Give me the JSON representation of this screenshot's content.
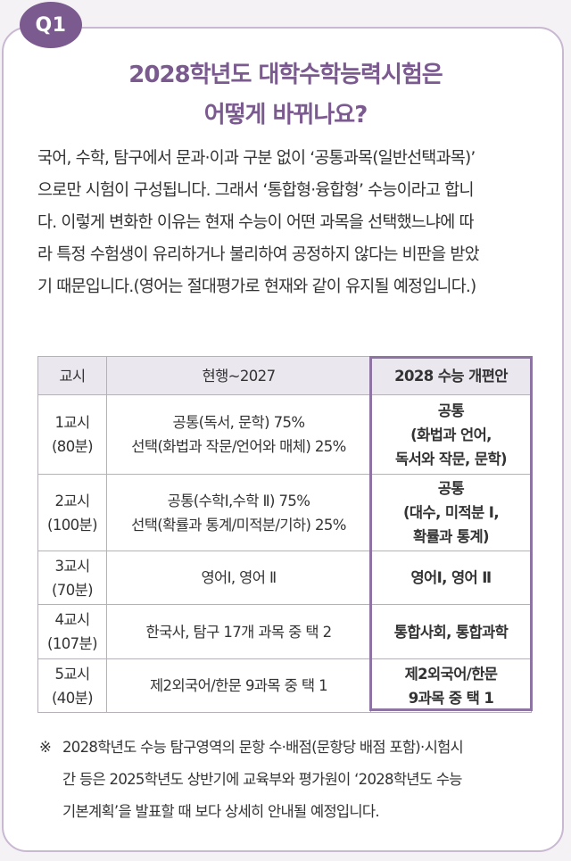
{
  "badge": "Q1",
  "title": {
    "line1": "2028학년도 대학수학능력시험은",
    "line2": "어떻게 바뀌나요?"
  },
  "intro": {
    "lines": [
      "국어, 수학, 탐구에서 문과·이과 구분 없이 ‘공통과목(일반선택과목)’",
      "으로만 시험이 구성됩니다. 그래서 ‘통합형·융합형’ 수능이라고 합니",
      "다. 이렇게 변화한 이유는 현재 수능이 어떤 과목을 선택했느냐에 따",
      "라 특정 수험생이 유리하거나 불리하여 공정하지 않다는 비판을 받았",
      "기 때문입니다.(영어는 절대평가로 현재와 같이 유지될 예정입니다.)"
    ]
  },
  "table": {
    "headers": [
      "교시",
      "현행~2027",
      "2028 수능 개편안"
    ],
    "rows": [
      {
        "period": [
          "1교시",
          "(80분)"
        ],
        "current": [
          "공통(독서, 문학) 75%",
          "선택(화법과 작문/언어와 매체) 25%"
        ],
        "new": [
          "공통",
          "(화법과 언어,",
          "독서와 작문, 문학)"
        ]
      },
      {
        "period": [
          "2교시",
          "(100분)"
        ],
        "current": [
          "공통(수학Ⅰ,수학 Ⅱ) 75%",
          "선택(확률과 통계/미적분/기하) 25%"
        ],
        "new": [
          "공통",
          "(대수, 미적분 Ⅰ,",
          "확률과 통계)"
        ]
      },
      {
        "period": [
          "3교시",
          "(70분)"
        ],
        "current": [
          "영어Ⅰ, 영어 Ⅱ"
        ],
        "new": [
          "영어Ⅰ, 영어 Ⅱ"
        ]
      },
      {
        "period": [
          "4교시",
          "(107분)"
        ],
        "current": [
          "한국사, 탐구 17개 과목 중 택 2"
        ],
        "new": [
          "통합사회, 통합과학"
        ]
      },
      {
        "period": [
          "5교시",
          "(40분)"
        ],
        "current": [
          "제2외국어/한문 9과목 중 택 1"
        ],
        "new": [
          "제2외국어/한문",
          "9과목 중 택 1"
        ]
      }
    ]
  },
  "note": {
    "mark": "※",
    "lines": [
      "2028학년도 수능 탐구영역의 문항 수·배점(문항당 배점 포함)·시험시",
      "간 등은 2025학년도 상반기에 교육부와 평가원이 ‘2028학년도 수능",
      "기본계획’을 발표할 때 보다 상세히 안내될 예정입니다."
    ]
  },
  "colors": {
    "accent": "#7b5a8f",
    "border": "#c9b8d2",
    "header_bg": "#ebe7ee"
  }
}
